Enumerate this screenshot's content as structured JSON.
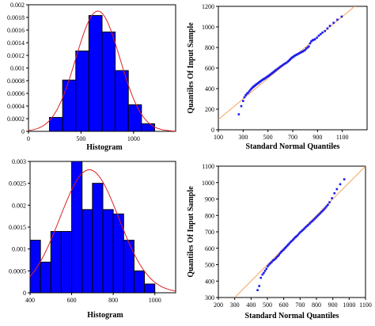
{
  "chart_data": [
    {
      "type": "bar",
      "xlabel": "Histogram",
      "xlim": [
        0,
        1400
      ],
      "ylim": [
        0,
        0.002
      ],
      "xticks": [
        "0",
        "500",
        "1000"
      ],
      "yticks": [
        "0",
        "0.0002",
        "0.0004",
        "0.0006",
        "0.0008",
        "0.001",
        "0.0012",
        "0.0014",
        "0.0016",
        "0.0018",
        "0.002"
      ],
      "bins": [
        {
          "x0": 200,
          "x1": 325,
          "value": 0.00022
        },
        {
          "x0": 325,
          "x1": 450,
          "value": 0.00081
        },
        {
          "x0": 450,
          "x1": 575,
          "value": 0.00127
        },
        {
          "x0": 575,
          "x1": 700,
          "value": 0.00183
        },
        {
          "x0": 700,
          "x1": 825,
          "value": 0.00157
        },
        {
          "x0": 825,
          "x1": 950,
          "value": 0.00096
        },
        {
          "x0": 950,
          "x1": 1075,
          "value": 0.00042
        },
        {
          "x0": 1075,
          "x1": 1200,
          "value": 0.00012
        }
      ],
      "normal_curve": {
        "mean": 660,
        "sd": 210
      },
      "colors": {
        "bar": "#0000ff",
        "curve": "#dd2222"
      }
    },
    {
      "type": "scatter",
      "xlabel": "Standard  Normal Quantiles",
      "ylabel": "Quantiles  Of Input Sample",
      "xlim": [
        100,
        1300
      ],
      "ylim": [
        0,
        1200
      ],
      "xticks": [
        "100",
        "300",
        "500",
        "700",
        "900",
        "1100"
      ],
      "yticks": [
        "0",
        "200",
        "400",
        "600",
        "800",
        "1000",
        "1200"
      ],
      "reference_line": [
        [
          100,
          100
        ],
        [
          1300,
          1300
        ]
      ],
      "points_x": [
        265,
        285,
        300,
        310,
        320,
        330,
        340,
        350,
        360,
        368,
        375,
        383,
        390,
        398,
        405,
        412,
        420,
        428,
        435,
        442,
        450,
        458,
        466,
        474,
        482,
        490,
        498,
        506,
        514,
        522,
        530,
        538,
        546,
        554,
        562,
        570,
        580,
        590,
        600,
        610,
        620,
        630,
        640,
        650,
        660,
        668,
        676,
        684,
        692,
        700,
        708,
        716,
        724,
        732,
        740,
        750,
        760,
        770,
        780,
        790,
        800,
        810,
        820,
        830,
        840,
        850,
        860,
        870,
        880,
        895,
        910,
        925,
        940,
        960,
        980,
        1000,
        1030,
        1060,
        1095
      ],
      "points_y": [
        150,
        230,
        280,
        315,
        335,
        350,
        360,
        375,
        390,
        400,
        410,
        418,
        425,
        432,
        440,
        446,
        452,
        460,
        467,
        473,
        480,
        487,
        493,
        498,
        505,
        512,
        518,
        525,
        532,
        540,
        547,
        555,
        562,
        570,
        578,
        585,
        594,
        603,
        612,
        621,
        630,
        638,
        645,
        652,
        662,
        670,
        680,
        690,
        700,
        705,
        712,
        720,
        725,
        730,
        735,
        742,
        748,
        755,
        760,
        768,
        776,
        790,
        800,
        810,
        840,
        860,
        870,
        875,
        880,
        895,
        915,
        930,
        945,
        960,
        985,
        1010,
        1040,
        1070,
        1100
      ],
      "colors": {
        "point": "#1a1aee",
        "line": "#f4a460"
      }
    },
    {
      "type": "bar",
      "xlabel": "Histogram",
      "xlim": [
        400,
        1100
      ],
      "ylim": [
        0,
        0.003
      ],
      "xticks": [
        "400",
        "600",
        "800",
        "1000"
      ],
      "yticks": [
        "0",
        "0.0005",
        "0.001",
        "0.0015",
        "0.002",
        "0.0025",
        "0.003"
      ],
      "bins": [
        {
          "x0": 400,
          "x1": 450,
          "value": 0.0012
        },
        {
          "x0": 450,
          "x1": 500,
          "value": 0.0007
        },
        {
          "x0": 500,
          "x1": 550,
          "value": 0.0014
        },
        {
          "x0": 550,
          "x1": 600,
          "value": 0.0014
        },
        {
          "x0": 600,
          "x1": 650,
          "value": 0.003
        },
        {
          "x0": 650,
          "x1": 700,
          "value": 0.0019
        },
        {
          "x0": 700,
          "x1": 750,
          "value": 0.0025
        },
        {
          "x0": 750,
          "x1": 800,
          "value": 0.0019
        },
        {
          "x0": 800,
          "x1": 850,
          "value": 0.0018
        },
        {
          "x0": 850,
          "x1": 900,
          "value": 0.0012
        },
        {
          "x0": 900,
          "x1": 950,
          "value": 0.0005
        },
        {
          "x0": 950,
          "x1": 1000,
          "value": 0.0002
        }
      ],
      "normal_curve": {
        "mean": 685,
        "sd": 142
      },
      "colors": {
        "bar": "#0000ff",
        "curve": "#dd2222"
      }
    },
    {
      "type": "scatter",
      "xlabel": "Standard  Normal Quantiles",
      "ylabel": "Quantiles  Of Input Sample",
      "xlim": [
        200,
        1100
      ],
      "ylim": [
        300,
        1100
      ],
      "xticks": [
        "200",
        "300",
        "400",
        "500",
        "600",
        "700",
        "800",
        "900",
        "1000",
        "1100"
      ],
      "yticks": [
        "300",
        "400",
        "500",
        "600",
        "700",
        "800",
        "900",
        "1000",
        "1100"
      ],
      "reference_line": [
        [
          300,
          300
        ],
        [
          1100,
          1100
        ]
      ],
      "points_x": [
        440,
        450,
        460,
        470,
        478,
        486,
        494,
        502,
        510,
        518,
        526,
        534,
        542,
        550,
        557,
        564,
        571,
        578,
        585,
        592,
        600,
        607,
        614,
        621,
        628,
        635,
        642,
        650,
        657,
        664,
        671,
        678,
        686,
        694,
        702,
        710,
        718,
        726,
        734,
        742,
        750,
        758,
        766,
        774,
        782,
        790,
        798,
        806,
        814,
        822,
        830,
        838,
        846,
        854,
        862,
        870,
        880,
        895,
        910,
        925,
        945,
        970
      ],
      "points_y": [
        345,
        370,
        420,
        440,
        450,
        463,
        475,
        490,
        500,
        508,
        515,
        525,
        530,
        537,
        545,
        552,
        560,
        570,
        578,
        585,
        592,
        600,
        607,
        615,
        622,
        630,
        638,
        645,
        652,
        660,
        667,
        673,
        680,
        690,
        698,
        705,
        712,
        720,
        728,
        735,
        742,
        750,
        758,
        765,
        772,
        780,
        788,
        796,
        804,
        812,
        820,
        828,
        836,
        845,
        855,
        865,
        880,
        905,
        935,
        960,
        990,
        1020
      ],
      "colors": {
        "point": "#1a1aee",
        "line": "#f4a460"
      }
    }
  ]
}
